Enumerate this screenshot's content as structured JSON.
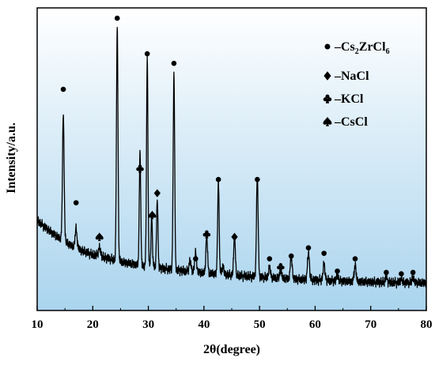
{
  "chart_data": {
    "type": "line",
    "xlabel": "2θ(degree)",
    "ylabel": "Intensity/a.u.",
    "xlim": [
      10,
      80
    ],
    "x_ticks": [
      10,
      20,
      30,
      40,
      50,
      60,
      70,
      80
    ],
    "y_ticks_shown": false,
    "y_range": [
      0,
      100
    ],
    "legend_placement": "top-right",
    "legend": [
      {
        "marker": "circle",
        "dash": "–",
        "base": "Cs",
        "sub1": "2",
        "mid": "ZrCl",
        "sub2": "6"
      },
      {
        "marker": "diamond",
        "dash": "–",
        "label": "NaCl"
      },
      {
        "marker": "club",
        "dash": "–",
        "label": "KCl"
      },
      {
        "marker": "spade",
        "dash": "–",
        "label": "CsCl"
      }
    ],
    "background": {
      "top": "#ffffff",
      "bottom": "#aad4ee"
    },
    "baseline": {
      "x": [
        10,
        12,
        14,
        16,
        18,
        20,
        22,
        24,
        26,
        28,
        30,
        32,
        34,
        36,
        38,
        40,
        42,
        44,
        46,
        48,
        50,
        55,
        60,
        65,
        70,
        75,
        80
      ],
      "y": [
        28,
        24.5,
        21.5,
        19,
        17,
        15.5,
        14.5,
        13.5,
        12.5,
        11.8,
        11.2,
        10.6,
        10.1,
        9.6,
        9.2,
        8.8,
        8.5,
        8.2,
        7.9,
        7.6,
        7.3,
        6.7,
        6.2,
        5.8,
        5.5,
        5.3,
        5.2
      ]
    },
    "peaks": [
      {
        "x": 14.7,
        "h": 46,
        "w": 0.35
      },
      {
        "x": 17.0,
        "h": 7,
        "w": 0.4
      },
      {
        "x": 21.2,
        "h": 3,
        "w": 0.5
      },
      {
        "x": 24.4,
        "h": 86,
        "w": 0.32
      },
      {
        "x": 28.5,
        "h": 42,
        "w": 0.3
      },
      {
        "x": 29.8,
        "h": 76,
        "w": 0.3
      },
      {
        "x": 30.6,
        "h": 18,
        "w": 0.3
      },
      {
        "x": 31.6,
        "h": 25,
        "w": 0.3
      },
      {
        "x": 34.6,
        "h": 72,
        "w": 0.32
      },
      {
        "x": 37.5,
        "h": 4,
        "w": 0.4
      },
      {
        "x": 38.5,
        "h": 7,
        "w": 0.4
      },
      {
        "x": 40.5,
        "h": 14,
        "w": 0.35
      },
      {
        "x": 42.6,
        "h": 34,
        "w": 0.32
      },
      {
        "x": 43.4,
        "h": 3,
        "w": 0.4
      },
      {
        "x": 45.5,
        "h": 14,
        "w": 0.35
      },
      {
        "x": 49.6,
        "h": 37,
        "w": 0.35
      },
      {
        "x": 51.8,
        "h": 4,
        "w": 0.4
      },
      {
        "x": 53.8,
        "h": 3,
        "w": 0.4
      },
      {
        "x": 55.7,
        "h": 8,
        "w": 0.4
      },
      {
        "x": 58.8,
        "h": 10,
        "w": 0.4
      },
      {
        "x": 61.6,
        "h": 6,
        "w": 0.4
      },
      {
        "x": 64.0,
        "h": 2,
        "w": 0.4
      },
      {
        "x": 67.2,
        "h": 6,
        "w": 0.4
      },
      {
        "x": 72.8,
        "h": 2,
        "w": 0.4
      },
      {
        "x": 75.5,
        "h": 1.5,
        "w": 0.4
      },
      {
        "x": 77.6,
        "h": 2,
        "w": 0.4
      }
    ],
    "peak_markers": [
      {
        "x": 14.7,
        "y": 76,
        "marker": "circle"
      },
      {
        "x": 17.0,
        "y": 34.5,
        "marker": "circle"
      },
      {
        "x": 21.2,
        "y": 22,
        "marker": "spade"
      },
      {
        "x": 24.4,
        "y": 102,
        "marker": "circle"
      },
      {
        "x": 28.5,
        "y": 47,
        "marker": "club"
      },
      {
        "x": 29.8,
        "y": 89,
        "marker": "circle"
      },
      {
        "x": 30.7,
        "y": 30,
        "marker": "spade"
      },
      {
        "x": 31.6,
        "y": 38,
        "marker": "diamond"
      },
      {
        "x": 34.6,
        "y": 85.5,
        "marker": "circle"
      },
      {
        "x": 38.5,
        "y": 14,
        "marker": "circle"
      },
      {
        "x": 40.5,
        "y": 23,
        "marker": "club"
      },
      {
        "x": 42.6,
        "y": 43,
        "marker": "circle"
      },
      {
        "x": 45.5,
        "y": 22,
        "marker": "diamond"
      },
      {
        "x": 49.6,
        "y": 43,
        "marker": "circle"
      },
      {
        "x": 51.8,
        "y": 14,
        "marker": "circle"
      },
      {
        "x": 53.8,
        "y": 11,
        "marker": "club"
      },
      {
        "x": 55.7,
        "y": 15,
        "marker": "circle"
      },
      {
        "x": 58.8,
        "y": 18,
        "marker": "circle"
      },
      {
        "x": 61.6,
        "y": 16,
        "marker": "circle"
      },
      {
        "x": 64.0,
        "y": 9.5,
        "marker": "circle"
      },
      {
        "x": 67.2,
        "y": 14,
        "marker": "circle"
      },
      {
        "x": 72.8,
        "y": 9,
        "marker": "circle"
      },
      {
        "x": 75.5,
        "y": 8.5,
        "marker": "circle"
      },
      {
        "x": 77.6,
        "y": 9,
        "marker": "circle"
      }
    ]
  }
}
